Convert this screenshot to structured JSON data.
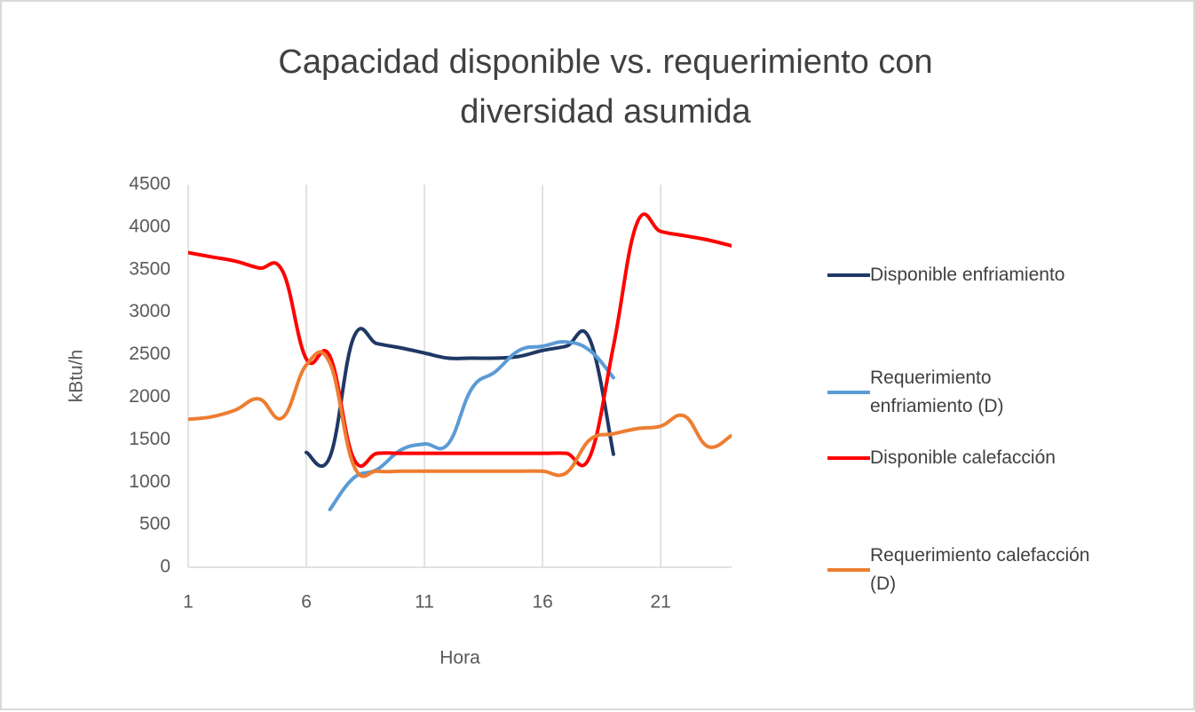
{
  "chart_data": {
    "type": "line",
    "title": "Capacidad disponible vs. requerimiento con diversidad asumida",
    "x_label": "Hora",
    "y_label": "kBtu/h",
    "x": [
      1,
      2,
      3,
      4,
      5,
      6,
      7,
      8,
      9,
      10,
      11,
      12,
      13,
      14,
      15,
      16,
      17,
      18,
      19,
      20,
      21,
      22,
      23,
      24
    ],
    "xlim": [
      1,
      24
    ],
    "xticks": [
      1,
      6,
      11,
      16,
      21
    ],
    "ylim": [
      0,
      4500
    ],
    "yticks": [
      0,
      500,
      1000,
      1500,
      2000,
      2500,
      3000,
      3500,
      4000,
      4500
    ],
    "grid": "x",
    "legend": "right",
    "series": [
      {
        "name": "Disponible enfriamiento",
        "color": "#1f3864",
        "values": [
          null,
          null,
          null,
          null,
          null,
          1350,
          1300,
          2700,
          2630,
          2580,
          2520,
          2460,
          2460,
          2460,
          2480,
          2550,
          2600,
          2680,
          1330,
          null,
          null,
          null,
          null,
          null
        ]
      },
      {
        "name": "Requerimiento enfriamiento (D)",
        "color": "#5b9bd5",
        "values": [
          null,
          null,
          null,
          null,
          null,
          null,
          680,
          1050,
          1150,
          1380,
          1450,
          1450,
          2100,
          2300,
          2550,
          2600,
          2650,
          2550,
          2230,
          null,
          null,
          null,
          null,
          null
        ]
      },
      {
        "name": "Disponible calefacción",
        "color": "#ff0000",
        "values": [
          3700,
          3650,
          3600,
          3520,
          3480,
          2450,
          2480,
          1280,
          1340,
          1340,
          1340,
          1340,
          1340,
          1340,
          1340,
          1340,
          1340,
          1300,
          2600,
          4050,
          3950,
          3900,
          3850,
          3780
        ]
      },
      {
        "name": "Requerimiento calefacción (D)",
        "color": "#ed7d31",
        "values": [
          1740,
          1770,
          1850,
          1980,
          1760,
          2380,
          2400,
          1200,
          1130,
          1130,
          1130,
          1130,
          1130,
          1130,
          1130,
          1130,
          1110,
          1500,
          1570,
          1630,
          1660,
          1780,
          1420,
          1550
        ]
      }
    ]
  }
}
